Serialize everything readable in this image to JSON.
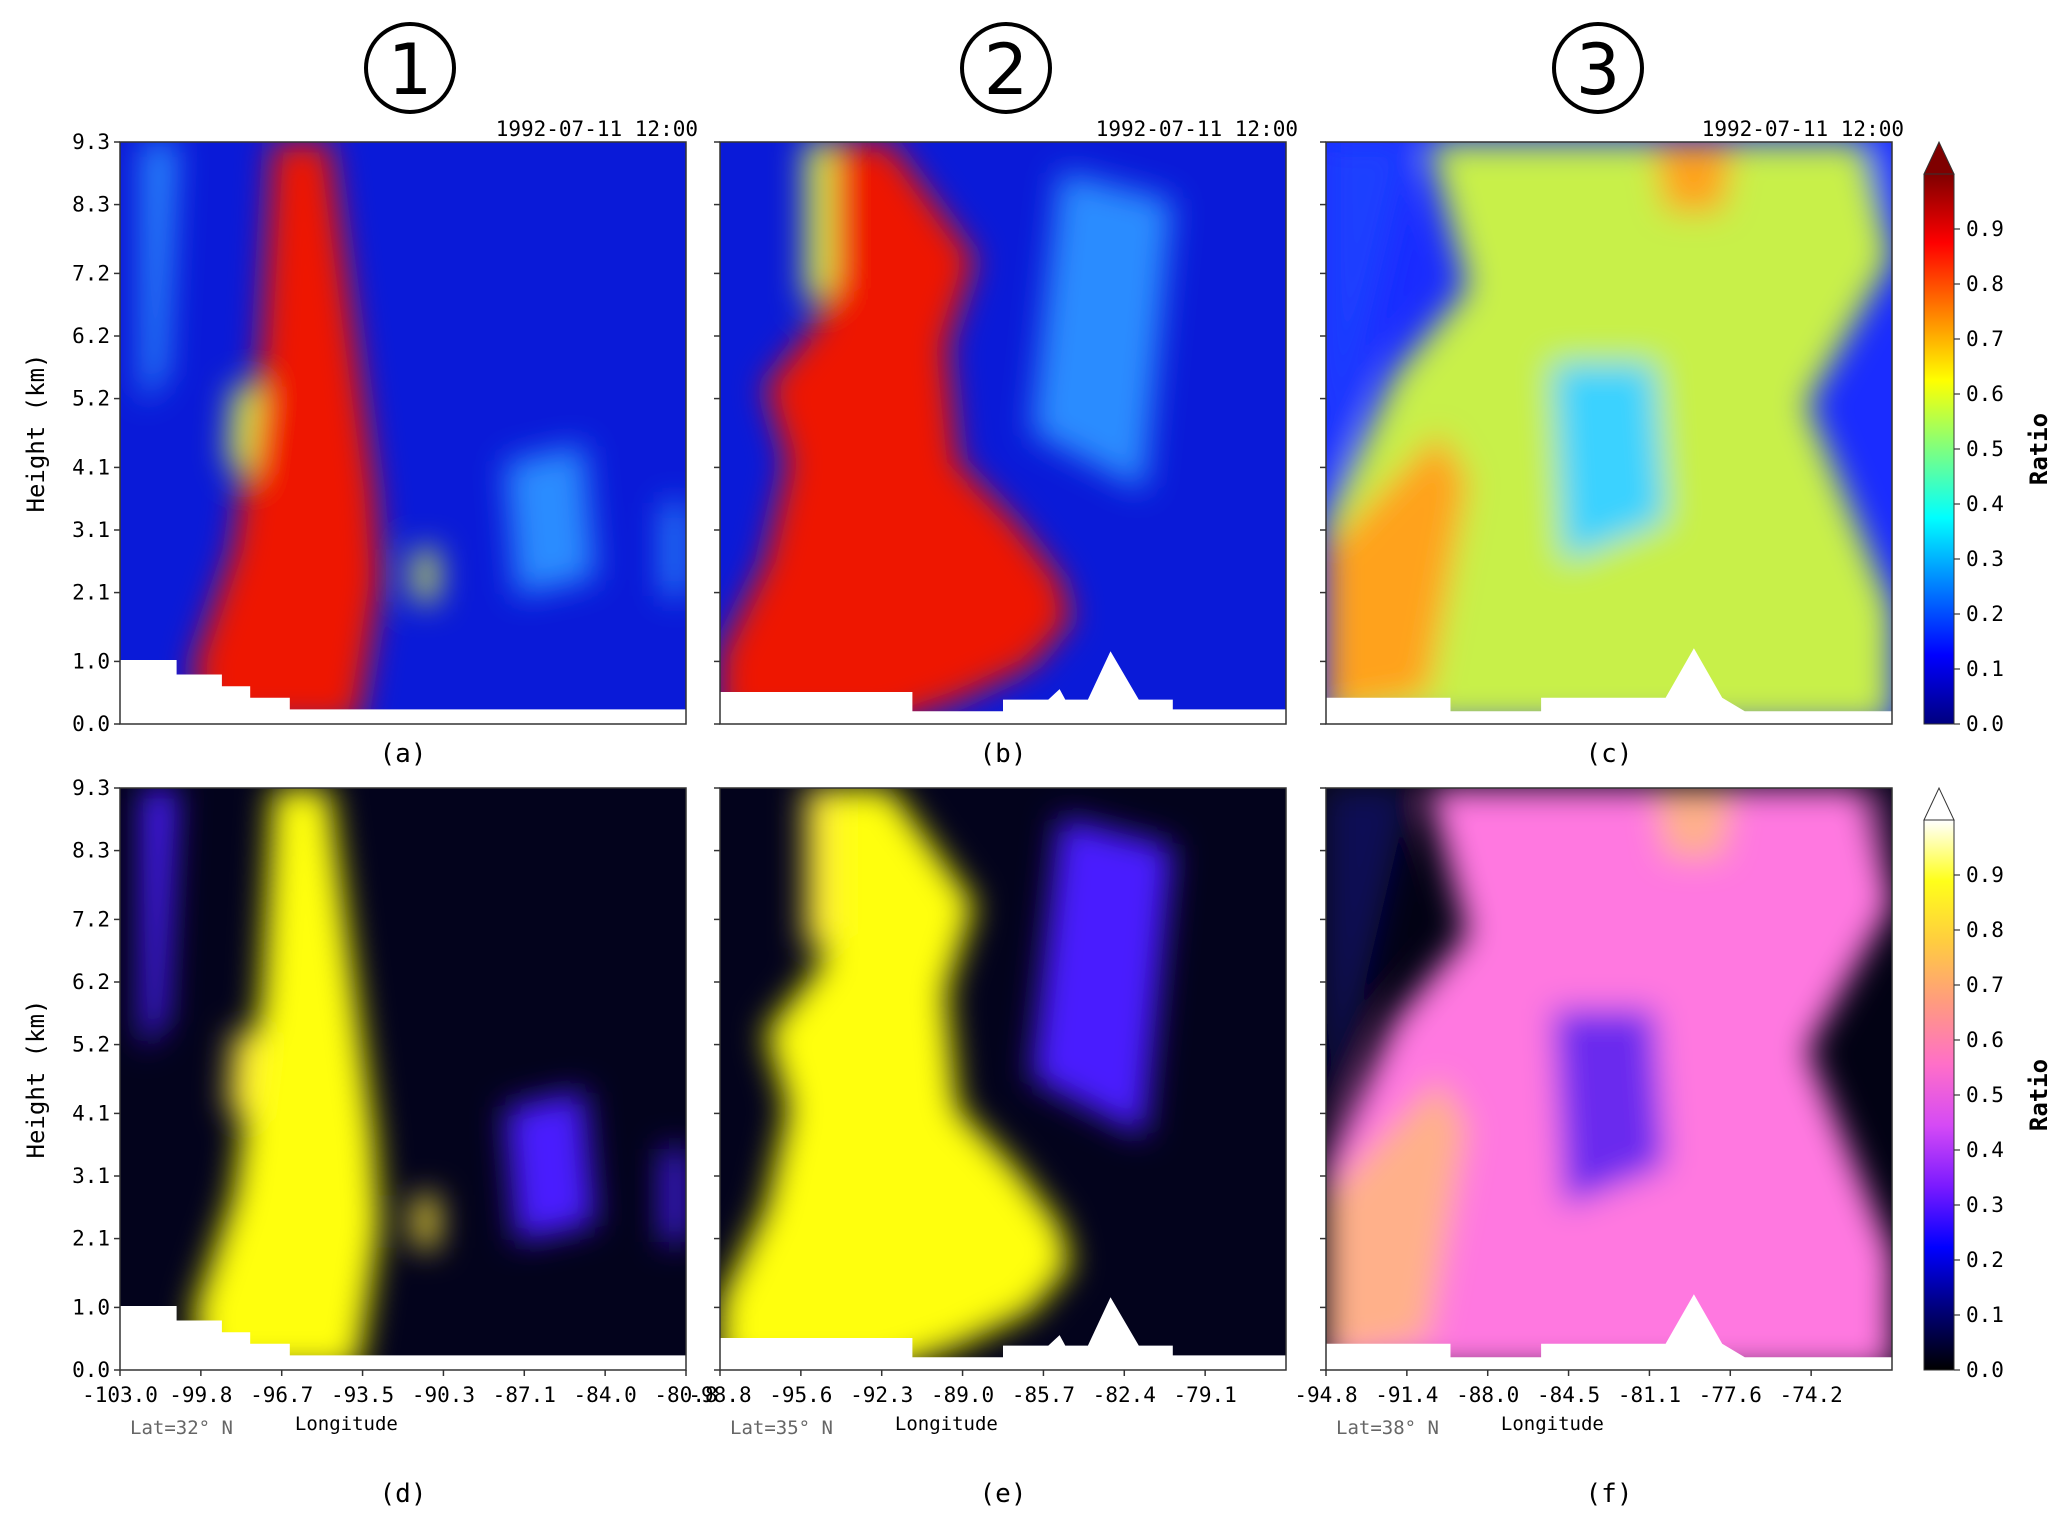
{
  "figure": {
    "column_markers": [
      "1",
      "2",
      "3"
    ],
    "colorbar_top": {
      "label": "Ratio",
      "ticks": [
        "0.0",
        "0.1",
        "0.2",
        "0.3",
        "0.4",
        "0.5",
        "0.6",
        "0.7",
        "0.8",
        "0.9"
      ],
      "colormap": "jet",
      "colors": [
        "#00007f",
        "#0000ff",
        "#007fff",
        "#00ffff",
        "#7fff7f",
        "#ffff00",
        "#ff7f00",
        "#ff0000",
        "#7f0000"
      ]
    },
    "colorbar_bottom": {
      "label": "Ratio",
      "ticks": [
        "0.0",
        "0.1",
        "0.2",
        "0.3",
        "0.4",
        "0.5",
        "0.6",
        "0.7",
        "0.8",
        "0.9"
      ],
      "colormap": "gnuplot2",
      "colors": [
        "#000000",
        "#00007a",
        "#0000ff",
        "#7a1aff",
        "#d54af5",
        "#ff6fc8",
        "#ff9a80",
        "#ffcc40",
        "#ffff1a",
        "#ffffff"
      ]
    }
  },
  "chart_data": [
    {
      "panel": "a",
      "type": "heatmap",
      "column": "1",
      "row": "top",
      "timestamp": "1992-07-11 12:00",
      "ylabel": "Height (km)",
      "yticks": [
        "0.0",
        "1.0",
        "2.1",
        "3.1",
        "4.1",
        "5.2",
        "6.2",
        "7.2",
        "8.3",
        "9.3"
      ],
      "ylim": [
        0,
        9.3
      ],
      "caption": "(a)"
    },
    {
      "panel": "b",
      "type": "heatmap",
      "column": "2",
      "row": "top",
      "timestamp": "1992-07-11 12:00",
      "ylim": [
        0,
        9.3
      ],
      "caption": "(b)"
    },
    {
      "panel": "c",
      "type": "heatmap",
      "column": "3",
      "row": "top",
      "timestamp": "1992-07-11 12:00",
      "ylim": [
        0,
        9.3
      ],
      "caption": "(c)"
    },
    {
      "panel": "d",
      "type": "heatmap",
      "column": "1",
      "row": "bottom",
      "ylabel": "Height (km)",
      "yticks": [
        "0.0",
        "1.0",
        "2.1",
        "3.1",
        "4.1",
        "5.2",
        "6.2",
        "7.2",
        "8.3",
        "9.3"
      ],
      "xlabel": "Longitude",
      "xticks": [
        "-103.0",
        "-99.8",
        "-96.7",
        "-93.5",
        "-90.3",
        "-87.1",
        "-84.0",
        "-80.8"
      ],
      "lat": "Lat=32° N",
      "ylim": [
        0,
        9.3
      ],
      "caption": "(d)"
    },
    {
      "panel": "e",
      "type": "heatmap",
      "column": "2",
      "row": "bottom",
      "xlabel": "Longitude",
      "xticks": [
        "-98.8",
        "-95.6",
        "-92.3",
        "-89.0",
        "-85.7",
        "-82.4",
        "-79.1"
      ],
      "lat": "Lat=35° N",
      "ylim": [
        0,
        9.3
      ],
      "caption": "(e)"
    },
    {
      "panel": "f",
      "type": "heatmap",
      "column": "3",
      "row": "bottom",
      "xlabel": "Longitude",
      "xticks": [
        "-94.8",
        "-91.4",
        "-88.0",
        "-84.5",
        "-81.1",
        "-77.6",
        "-74.2"
      ],
      "lat": "Lat=38° N",
      "ylim": [
        0,
        9.3
      ],
      "caption": "(f)"
    }
  ]
}
